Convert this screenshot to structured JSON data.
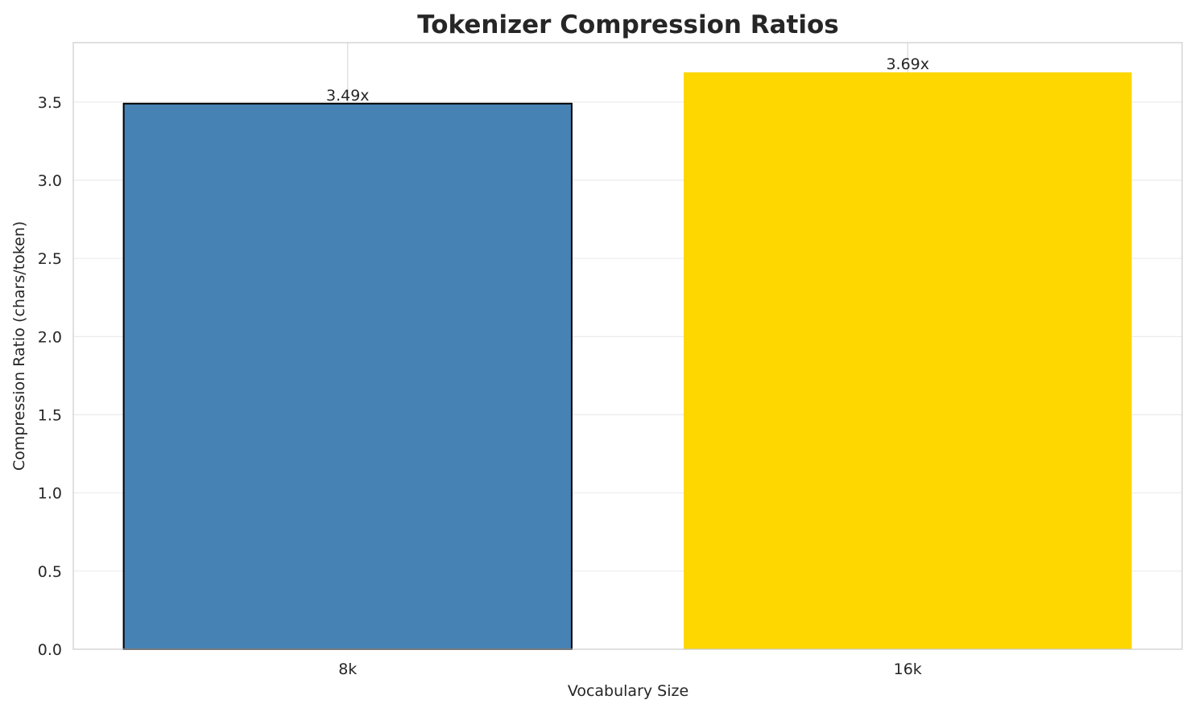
{
  "chart_data": {
    "type": "bar",
    "title": "Tokenizer Compression Ratios",
    "xlabel": "Vocabulary Size",
    "ylabel": "Compression Ratio (chars/token)",
    "categories": [
      "8k",
      "16k"
    ],
    "values": [
      3.49,
      3.69
    ],
    "data_labels": [
      "3.49x",
      "3.69x"
    ],
    "colors": [
      "#4682b4",
      "#ffd700"
    ],
    "edge_colors": [
      "#000000",
      "none"
    ],
    "ylim": [
      0,
      3.88
    ],
    "yticks": [
      0.0,
      0.5,
      1.0,
      1.5,
      2.0,
      2.5,
      3.0,
      3.5
    ],
    "ytick_labels": [
      "0.0",
      "0.5",
      "1.0",
      "1.5",
      "2.0",
      "2.5",
      "3.0",
      "3.5"
    ],
    "grid": true,
    "legend": "none"
  }
}
